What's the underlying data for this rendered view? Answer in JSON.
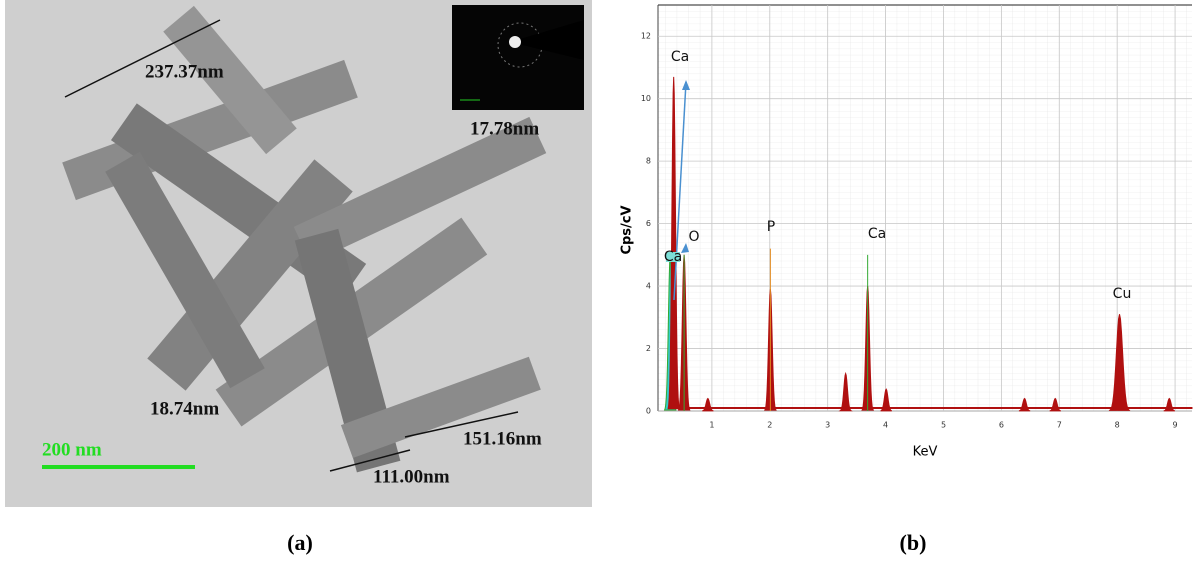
{
  "figure": {
    "tem_labels": [
      "237.37nm",
      "17.78nm",
      "18.74nm",
      "151.16nm",
      "111.00nm"
    ],
    "scale_bar": "200 nm",
    "captions": [
      "(a)",
      "(b)"
    ]
  },
  "chart_data": {
    "type": "spectrum",
    "x_label": "KeV",
    "y_label": "Cps/cV",
    "x": [
      0.28,
      0.34,
      0.52,
      0.93,
      2.01,
      3.31,
      3.69,
      4.01,
      6.4,
      6.93,
      8.04,
      8.9
    ],
    "values": [
      5,
      10.7,
      5,
      0.4,
      3.9,
      1.2,
      4,
      0.7,
      0.4,
      0.4,
      3.1,
      0.4
    ],
    "color": "#b01010",
    "annotations": [
      "Ca",
      "O",
      "P",
      "Ca",
      "Cu",
      "Ca"
    ],
    "xlim": [
      0,
      9.3
    ],
    "ylim": [
      0,
      13
    ],
    "xticks": [
      1,
      2,
      3,
      4,
      5,
      6,
      7,
      8,
      9
    ],
    "yticks": [
      0,
      2,
      4,
      6,
      8,
      10,
      12
    ],
    "grid": true
  }
}
